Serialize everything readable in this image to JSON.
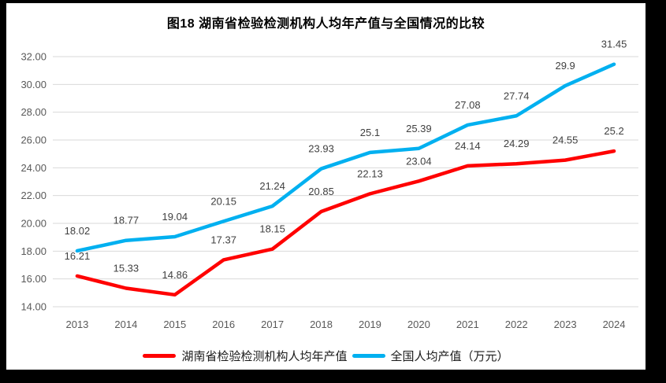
{
  "chart_data": {
    "type": "line",
    "title": "图18 湖南省检验检测机构人均年产值与全国情况的比较",
    "categories": [
      "2013",
      "2014",
      "2015",
      "2016",
      "2017",
      "2018",
      "2019",
      "2020",
      "2021",
      "2022",
      "2023",
      "2024"
    ],
    "series": [
      {
        "name": "湖南省检验检测机构人均年产值",
        "color": "#FF0000",
        "values": [
          16.21,
          15.33,
          14.86,
          17.37,
          18.15,
          20.85,
          22.13,
          23.04,
          24.14,
          24.29,
          24.55,
          25.2
        ]
      },
      {
        "name": "全国人均产值（万元）",
        "color": "#00B0F0",
        "values": [
          18.02,
          18.77,
          19.04,
          20.15,
          21.24,
          23.93,
          25.1,
          25.39,
          27.08,
          27.74,
          29.9,
          31.45
        ]
      }
    ],
    "ylim": [
      14,
      32
    ],
    "ytick_step": 2,
    "ytick_decimals": 2,
    "grid": true,
    "data_labels": true,
    "legend_position": "bottom",
    "colors": {
      "gridline": "#D9D9D9",
      "axis_text": "#595959",
      "data_label": "#404040",
      "title_text": "#000000",
      "legend_text": "#1a1a1a",
      "page_background": "#FFFFFF",
      "outer_frame": "#000000"
    }
  }
}
